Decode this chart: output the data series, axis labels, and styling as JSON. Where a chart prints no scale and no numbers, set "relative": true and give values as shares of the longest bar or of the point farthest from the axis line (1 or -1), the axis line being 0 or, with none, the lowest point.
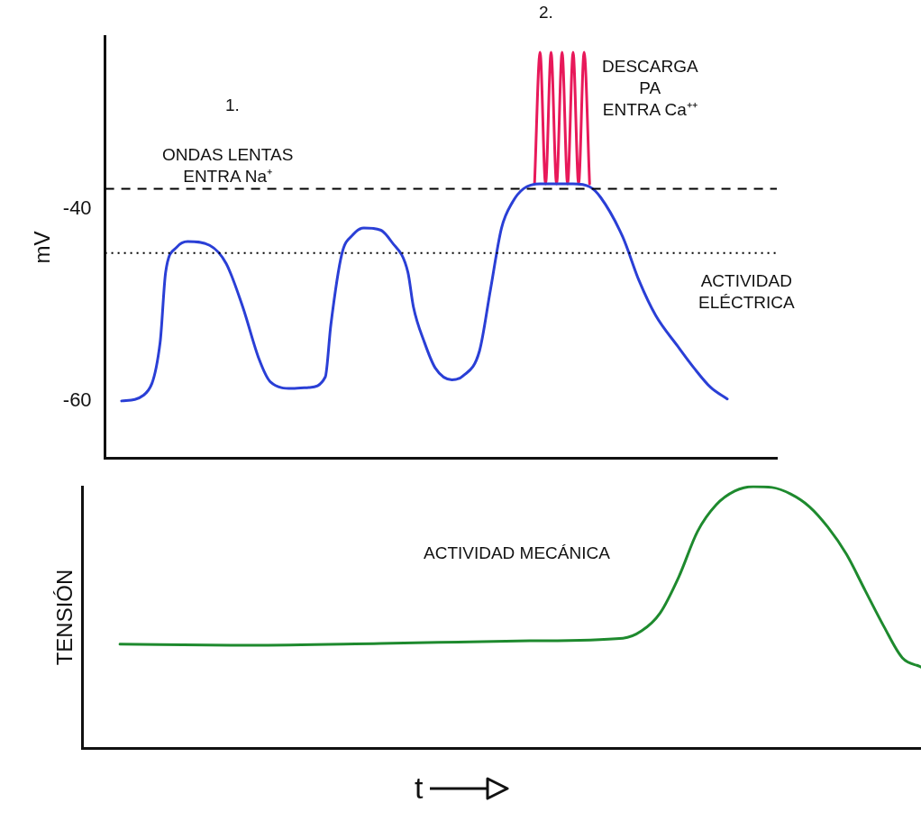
{
  "chart_data": [
    {
      "type": "line",
      "ylabel": "mV",
      "categories": [
        null,
        null,
        null,
        null,
        null,
        null,
        null,
        null,
        null,
        null,
        null,
        null,
        null,
        null,
        null,
        null,
        null,
        null,
        null,
        null,
        null,
        null,
        null,
        null,
        null,
        null,
        null,
        null,
        null,
        null,
        null,
        null,
        null,
        null,
        null,
        null,
        null,
        null,
        null,
        null,
        null,
        null,
        null,
        null,
        null,
        null,
        null,
        null,
        null,
        null,
        null,
        null,
        null,
        null,
        null,
        null,
        null,
        null,
        null,
        null,
        null,
        null,
        null,
        null,
        null,
        null,
        null,
        null,
        null,
        null,
        null,
        null,
        null,
        null,
        null,
        null,
        null,
        null,
        null,
        null,
        null,
        null,
        null,
        null,
        null,
        null,
        null,
        null,
        null,
        null,
        null,
        null,
        null,
        null,
        null,
        null,
        null,
        null,
        null,
        null,
        null,
        null,
        null,
        null,
        null,
        null,
        null,
        null,
        null,
        null,
        null,
        null,
        null,
        null,
        null,
        null,
        null,
        null,
        null,
        null,
        null,
        null,
        null
      ],
      "series": [
        {
          "color": "#2a3fd6",
          "values": [
            null,
            null,
            null,
            -60.0,
            null,
            null,
            null,
            -59.4,
            null,
            null,
            -53.9,
            -46.6,
            null,
            -44.0,
            null,
            -43.4,
            null,
            null,
            null,
            -43.8,
            null,
            null,
            -45.7,
            null,
            null,
            -50.2,
            null,
            null,
            -55.7,
            null,
            -58.0,
            null,
            null,
            null,
            -58.7,
            null,
            null,
            -58.6,
            null,
            null,
            -57.5,
            -52.1,
            null,
            -44.7,
            null,
            -42.7,
            null,
            -42.0,
            null,
            null,
            -42.2,
            null,
            -43.4,
            null,
            null,
            -46.6,
            -50.2,
            null,
            -53.9,
            null,
            -56.6,
            null,
            null,
            -57.8,
            null,
            -57.4,
            null,
            null,
            -54.8,
            null,
            -48.4,
            null,
            -42.0,
            null,
            -39.3,
            null,
            -37.9,
            null,
            null,
            -37.4,
            null,
            null,
            -37.4,
            null,
            null,
            -37.4,
            null,
            null,
            -37.7,
            null,
            -38.8,
            null,
            null,
            null,
            -42.9,
            null,
            null,
            -47.5,
            null,
            null,
            -51.1,
            null,
            null,
            null,
            -54.3,
            null,
            null,
            -56.6,
            null,
            null,
            -58.6,
            null,
            null,
            -59.8,
            null,
            null,
            null,
            null,
            null,
            null,
            null,
            null,
            null
          ]
        },
        {
          "color": "#e8195a",
          "values": [
            null,
            null,
            null,
            null,
            null,
            null,
            null,
            null,
            null,
            null,
            null,
            null,
            null,
            null,
            null,
            null,
            null,
            null,
            null,
            null,
            null,
            null,
            null,
            null,
            null,
            null,
            null,
            null,
            null,
            null,
            null,
            null,
            null,
            null,
            null,
            null,
            null,
            null,
            null,
            null,
            null,
            null,
            null,
            null,
            null,
            null,
            null,
            null,
            null,
            null,
            null,
            null,
            null,
            null,
            null,
            null,
            null,
            null,
            null,
            null,
            null,
            null,
            null,
            null,
            null,
            null,
            null,
            null,
            null,
            null,
            null,
            null,
            null,
            null,
            null,
            null,
            null,
            null,
            -37.4,
            -23.7,
            -37.4,
            -23.7,
            -37.4,
            -23.7,
            -37.4,
            -23.7,
            -37.4,
            -23.7,
            -37.4,
            null,
            null,
            null,
            null,
            null,
            null,
            null,
            null,
            null,
            null,
            null,
            null,
            null,
            null,
            null,
            null,
            null,
            null,
            null,
            null,
            null,
            null,
            null,
            null,
            null,
            null,
            null,
            null,
            null,
            null,
            null,
            null,
            null,
            null
          ]
        }
      ],
      "ylim": [
        -66,
        -22
      ],
      "yticks": [
        -40,
        -60
      ],
      "grid": false,
      "legend": false,
      "marker": "none",
      "tick_labels": "y",
      "ref_lines": [
        {
          "axis": "y",
          "value": -37.9,
          "line_style": "dashed",
          "color": "#000000"
        },
        {
          "axis": "y",
          "value": -44.6,
          "line_style": "dotted",
          "color": "#000000"
        }
      ],
      "annotations": [
        "1.",
        "ONDAS LENTAS\nENTRA Na⁺",
        "2.",
        "DESCARGA\nPA\nENTRA Ca⁺⁺",
        "ACTIVIDAD\nELÉCTRICA"
      ]
    },
    {
      "type": "line",
      "ylabel": "TENSIÓN",
      "xlabel": "t",
      "relative": true,
      "categories": [
        null,
        null,
        null,
        null,
        null,
        null,
        null,
        null,
        null,
        null,
        null,
        null,
        null,
        null,
        null,
        null,
        null,
        null,
        null,
        null,
        null,
        null,
        null,
        null,
        null,
        null,
        null,
        null,
        null,
        null,
        null,
        null,
        null,
        null,
        null,
        null,
        null,
        null,
        null,
        null,
        null,
        null,
        null,
        null,
        null,
        null
      ],
      "series": [
        {
          "color": "#1e8a2e",
          "values": [
            null,
            null,
            0.397,
            null,
            null,
            null,
            null,
            null,
            null,
            0.393,
            null,
            null,
            null,
            null,
            null,
            null,
            0.4,
            null,
            null,
            null,
            null,
            null,
            null,
            null,
            0.41,
            null,
            null,
            null,
            null,
            0.42,
            0.448,
            0.517,
            0.655,
            0.828,
            0.93,
            0.983,
            1.0,
            0.997,
            0.972,
            0.924,
            0.845,
            0.741,
            0.603,
            0.466,
            0.345,
            0.31
          ]
        }
      ],
      "grid": false,
      "legend": false,
      "marker": "none",
      "tick_labels": false,
      "annotations": [
        "ACTIVIDAD MECÁNICA"
      ]
    }
  ]
}
